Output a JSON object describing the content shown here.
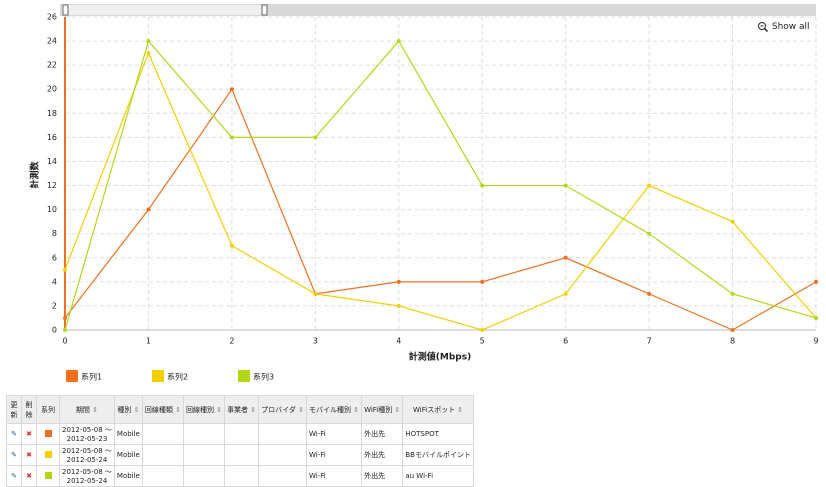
{
  "chart_data": {
    "type": "line",
    "x_label": "計測値(Mbps)",
    "y_label": "計測数",
    "x": [
      0,
      1,
      2,
      3,
      4,
      5,
      6,
      7,
      8,
      9
    ],
    "xlim": [
      0,
      9
    ],
    "xticks": [
      0,
      1,
      2,
      3,
      4,
      5,
      6,
      7,
      8,
      9
    ],
    "ylim": [
      0,
      26
    ],
    "yticks": [
      0,
      2,
      4,
      6,
      8,
      10,
      12,
      14,
      16,
      18,
      20,
      22,
      24,
      26
    ],
    "grid": true,
    "legend": "bottom",
    "series": [
      {
        "name": "系列1",
        "color": "#f07020",
        "values": [
          1,
          10,
          20,
          3,
          4,
          4,
          6,
          3,
          0,
          4
        ]
      },
      {
        "name": "系列2",
        "color": "#f2d000",
        "values": [
          5,
          23,
          7,
          3,
          2,
          0,
          3,
          12,
          9,
          1
        ]
      },
      {
        "name": "系列3",
        "color": "#b0d818",
        "values": [
          0,
          24,
          16,
          16,
          24,
          12,
          12,
          8,
          3,
          1
        ]
      }
    ]
  },
  "button": "Show all",
  "table": {
    "headers": [
      "更新",
      "削除",
      "系列",
      "期間",
      "種別",
      "回線種類",
      "回線種別",
      "事業者",
      "プロバイダ",
      "モバイル種別",
      "WiFi種別",
      "WiFiスポット"
    ],
    "rows": [
      [
        [
          "2012-05-08 ～",
          "2012-05-23"
        ],
        "Mobile",
        null,
        null,
        null,
        null,
        "Wi-Fi",
        "外出先",
        "HOTSPOT"
      ],
      [
        [
          "2012-05-08 ～",
          "2012-05-24"
        ],
        "Mobile",
        null,
        null,
        null,
        null,
        "Wi-Fi",
        "外出先",
        "BBモバイルポイント"
      ],
      [
        [
          "2012-05-08 ～",
          "2012-05-24"
        ],
        "Mobile",
        null,
        null,
        null,
        null,
        "Wi-Fi",
        "外出先",
        "au Wi-Fi"
      ]
    ]
  }
}
